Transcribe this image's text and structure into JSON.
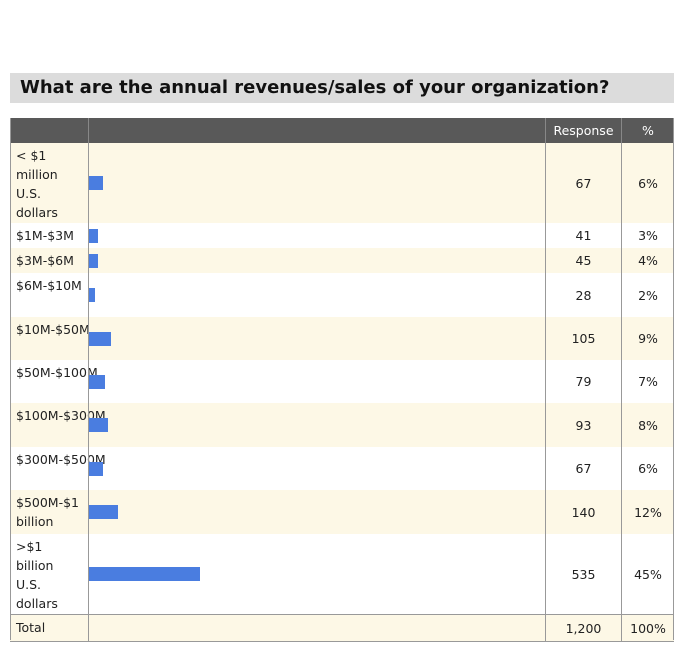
{
  "title": "What are the annual revenues/sales of your organization?",
  "table": {
    "header": [
      "Response",
      "%"
    ],
    "rows": [
      {
        "label": "< $1 million U.S. dollars",
        "response": 67,
        "percent": "6%"
      },
      {
        "label": "$1M-$3M",
        "response": 41,
        "percent": "3%"
      },
      {
        "label": "$3M-$6M",
        "response": 45,
        "percent": "4%"
      },
      {
        "label": "$6M-$10M",
        "response": 28,
        "percent": "2%"
      },
      {
        "label": "$10M-$50M",
        "response": 105,
        "percent": "9%"
      },
      {
        "label": "$50M-$100M",
        "response": 79,
        "percent": "7%"
      },
      {
        "label": "$100M-$300M",
        "response": 93,
        "percent": "8%"
      },
      {
        "label": "$300M-$500M",
        "response": 67,
        "percent": "6%"
      },
      {
        "label": "$500M-$1 billion",
        "response": 140,
        "percent": "12%"
      },
      {
        "label": ">$1 billion U.S. dollars",
        "response": 535,
        "percent": "45%"
      }
    ],
    "total": {
      "label": "Total",
      "response": "1,200",
      "percent": "100%"
    }
  }
}
